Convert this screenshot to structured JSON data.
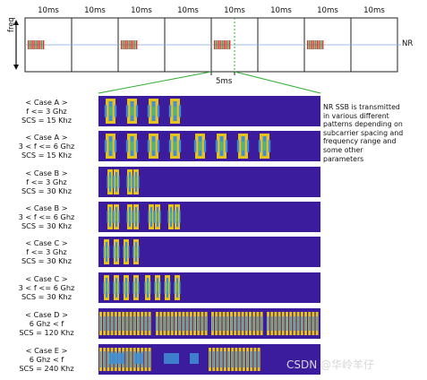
{
  "frame_labels": [
    "10ms",
    "10ms",
    "10ms",
    "10ms",
    "10ms",
    "10ms",
    "10ms",
    "10ms"
  ],
  "freq_label": "freq",
  "nr_label": "NR",
  "zoom_label": "5ms",
  "cases": [
    {
      "id": "case-a-low",
      "lines": [
        "< Case A >",
        "f <= 3 Ghz",
        "SCS = 15 Khz"
      ]
    },
    {
      "id": "case-a-mid",
      "lines": [
        "< Case A >",
        "3 < f <= 6 Ghz",
        "SCS = 15 Khz"
      ]
    },
    {
      "id": "case-b-low",
      "lines": [
        "< Case B >",
        "f <= 3 Ghz",
        "SCS = 30 Khz"
      ]
    },
    {
      "id": "case-b-mid",
      "lines": [
        "< Case B >",
        "3 < f <= 6 Ghz",
        "SCS = 30 Khz"
      ]
    },
    {
      "id": "case-c-low",
      "lines": [
        "< Case C >",
        "f <= 3 Ghz",
        "SCS = 30 Khz"
      ]
    },
    {
      "id": "case-c-mid",
      "lines": [
        "< Case C >",
        "3 < f <= 6 Ghz",
        "SCS = 30 Khz"
      ]
    },
    {
      "id": "case-d",
      "lines": [
        "< Case D >",
        "6 Ghz < f",
        "SCS = 120 Khz"
      ]
    },
    {
      "id": "case-e",
      "lines": [
        "< Case E >",
        "6 Ghz < f",
        "SCS = 240 Khz"
      ]
    }
  ],
  "note_lines": [
    "NR SSB is transmitted",
    "in various different",
    "patterns depending on",
    "subcarrier spacing and",
    "frequency range and",
    "some other",
    "parameters"
  ],
  "watermark": "CSDN @华岭羊仔",
  "colors": {
    "band": "#3a1c9c",
    "ssb_outer": "#e6c21a",
    "ssb_side": "#3f8fd6",
    "ssb_core": "#4ec45a",
    "frame_ssb_red": "#e02a2a",
    "frame_ssb_green": "#2e9f3a",
    "zoom_lines": "#2fae2f",
    "grid_line": "#000000"
  }
}
